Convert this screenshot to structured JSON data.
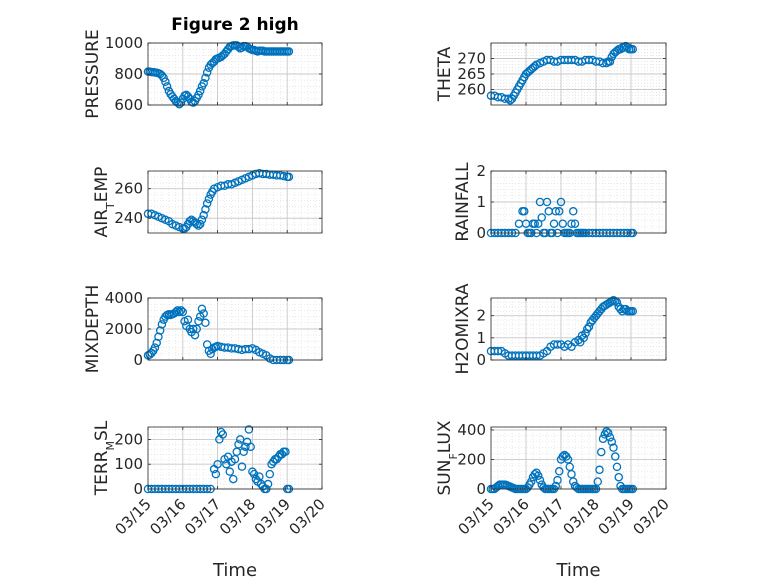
{
  "title": "Figure 2 high",
  "colors": {
    "marker": "#0072BD",
    "axis": "#262626",
    "grid": "#c8c8c8",
    "minor_grid": "#dcdcdc"
  },
  "x_axis": {
    "label": "Time",
    "range": [
      "03/15",
      "03/20"
    ],
    "ticks": [
      "03/15",
      "03/16",
      "03/17",
      "03/18",
      "03/19",
      "03/20"
    ]
  },
  "chart_data": [
    {
      "type": "scatter",
      "ylabel": "PRESSURE",
      "ylim": [
        600,
        1000
      ],
      "yticks": [
        "600",
        "800",
        "1000"
      ],
      "grid": true,
      "x": [
        0.0,
        0.05,
        0.1,
        0.15,
        0.2,
        0.25,
        0.3,
        0.35,
        0.4,
        0.45,
        0.5,
        0.55,
        0.6,
        0.65,
        0.7,
        0.75,
        0.8,
        0.85,
        0.9,
        0.95,
        1.0,
        1.05,
        1.1,
        1.15,
        1.2,
        1.25,
        1.3,
        1.35,
        1.4,
        1.45,
        1.5,
        1.55,
        1.6,
        1.65,
        1.7,
        1.75,
        1.8,
        1.85,
        1.9,
        1.95,
        2.0,
        2.05,
        2.1,
        2.15,
        2.2,
        2.25,
        2.3,
        2.35,
        2.4,
        2.45,
        2.5,
        2.55,
        2.6,
        2.65,
        2.7,
        2.75,
        2.8,
        2.85,
        2.9,
        2.95,
        3.0,
        3.05,
        3.1,
        3.15,
        3.2,
        3.25,
        3.3,
        3.35,
        3.4,
        3.45,
        3.5,
        3.55,
        3.6,
        3.65,
        3.7,
        3.75,
        3.8,
        3.85,
        3.9,
        3.95,
        4.0,
        4.05
      ],
      "y": [
        815,
        815,
        812,
        812,
        810,
        808,
        805,
        800,
        790,
        775,
        750,
        720,
        690,
        670,
        655,
        640,
        625,
        615,
        605,
        615,
        640,
        660,
        665,
        655,
        640,
        620,
        615,
        625,
        645,
        665,
        690,
        720,
        740,
        775,
        810,
        840,
        860,
        870,
        880,
        895,
        900,
        905,
        910,
        920,
        930,
        945,
        960,
        975,
        980,
        985,
        985,
        985,
        975,
        965,
        970,
        980,
        980,
        975,
        965,
        960,
        955,
        955,
        950,
        945,
        950,
        950,
        950,
        945,
        945,
        945,
        945,
        945,
        945,
        945,
        945,
        945,
        945,
        945,
        945,
        945,
        945,
        945
      ]
    },
    {
      "type": "scatter",
      "ylabel": "THETA",
      "ylim": [
        255,
        275
      ],
      "yticks": [
        "260",
        "265",
        "270"
      ],
      "grid": true,
      "x": [
        0.0,
        0.1,
        0.2,
        0.3,
        0.4,
        0.5,
        0.55,
        0.6,
        0.65,
        0.7,
        0.75,
        0.8,
        0.85,
        0.9,
        0.95,
        1.0,
        1.05,
        1.1,
        1.15,
        1.2,
        1.25,
        1.3,
        1.4,
        1.5,
        1.6,
        1.7,
        1.8,
        1.9,
        2.0,
        2.1,
        2.2,
        2.3,
        2.4,
        2.5,
        2.6,
        2.7,
        2.8,
        2.9,
        3.0,
        3.1,
        3.2,
        3.3,
        3.35,
        3.4,
        3.45,
        3.5,
        3.55,
        3.6,
        3.65,
        3.7,
        3.75,
        3.8,
        3.85,
        3.9,
        3.95,
        4.0,
        4.05
      ],
      "y": [
        258,
        258,
        257.5,
        257.5,
        257,
        257,
        256.5,
        257,
        258,
        259,
        260,
        261,
        262,
        263,
        264,
        265,
        265.5,
        266,
        266.5,
        267,
        267.5,
        268,
        268.5,
        269,
        269.5,
        269.5,
        269,
        269,
        269.5,
        269.5,
        269.5,
        269.5,
        269.5,
        269,
        269,
        269.5,
        269.5,
        269.5,
        269,
        269,
        268.5,
        268.5,
        269,
        269,
        270.5,
        271.5,
        272,
        272.5,
        273,
        273,
        273.5,
        273.5,
        274,
        273.5,
        273,
        273,
        273
      ]
    },
    {
      "type": "scatter",
      "ylabel": "AIR_TEMP",
      "ylim": [
        230,
        272
      ],
      "yticks": [
        "240",
        "260"
      ],
      "grid": true,
      "x": [
        0.0,
        0.1,
        0.2,
        0.3,
        0.4,
        0.5,
        0.6,
        0.7,
        0.8,
        0.9,
        1.0,
        1.05,
        1.1,
        1.15,
        1.2,
        1.25,
        1.3,
        1.35,
        1.4,
        1.45,
        1.5,
        1.55,
        1.6,
        1.65,
        1.7,
        1.75,
        1.8,
        1.85,
        1.9,
        2.0,
        2.1,
        2.2,
        2.3,
        2.4,
        2.5,
        2.6,
        2.7,
        2.8,
        2.9,
        3.0,
        3.1,
        3.2,
        3.3,
        3.4,
        3.5,
        3.6,
        3.7,
        3.8,
        3.9,
        4.0,
        4.05
      ],
      "y": [
        243,
        243,
        242,
        241,
        240,
        239,
        238,
        236,
        235,
        234,
        233,
        233,
        234,
        236,
        238,
        239,
        238,
        237,
        236,
        235,
        236,
        239,
        242,
        246,
        250,
        253,
        256,
        258,
        260,
        261,
        262,
        262,
        263,
        263,
        264,
        265,
        266,
        267,
        268,
        269,
        270,
        270.5,
        270,
        270,
        269.5,
        269.5,
        269,
        269,
        268.5,
        268,
        268
      ]
    },
    {
      "type": "scatter",
      "ylabel": "RAINFALL",
      "ylim": [
        0,
        2
      ],
      "yticks": [
        "0",
        "1",
        "2"
      ],
      "grid": true,
      "x": [
        0.0,
        0.1,
        0.2,
        0.3,
        0.4,
        0.5,
        0.6,
        0.7,
        0.8,
        0.9,
        0.95,
        1.0,
        1.05,
        1.1,
        1.15,
        1.2,
        1.25,
        1.3,
        1.35,
        1.4,
        1.45,
        1.5,
        1.55,
        1.6,
        1.65,
        1.7,
        1.75,
        1.8,
        1.85,
        1.9,
        1.95,
        2.0,
        2.05,
        2.1,
        2.15,
        2.2,
        2.25,
        2.3,
        2.35,
        2.4,
        2.45,
        2.5,
        2.55,
        2.6,
        2.65,
        2.7,
        2.8,
        2.9,
        3.0,
        3.1,
        3.2,
        3.3,
        3.4,
        3.5,
        3.6,
        3.7,
        3.8,
        3.9,
        4.0,
        4.05
      ],
      "y": [
        0,
        0,
        0,
        0,
        0,
        0,
        0,
        0,
        0.3,
        0.7,
        0.7,
        0.3,
        0,
        0,
        0,
        0.3,
        0.3,
        0,
        0.3,
        1,
        0.5,
        0,
        0,
        1,
        0.7,
        0,
        0,
        0.3,
        0.7,
        0,
        0.7,
        1,
        0.3,
        0,
        0,
        0,
        0,
        0.3,
        0.7,
        0.3,
        0,
        0,
        0,
        0,
        0,
        0,
        0,
        0,
        0,
        0,
        0,
        0,
        0,
        0,
        0,
        0,
        0,
        0,
        0,
        0
      ]
    },
    {
      "type": "scatter",
      "ylabel": "MIXDEPTH",
      "ylim": [
        0,
        4000
      ],
      "yticks": [
        "0",
        "2000",
        "4000"
      ],
      "grid": true,
      "x": [
        0.0,
        0.05,
        0.1,
        0.15,
        0.2,
        0.25,
        0.3,
        0.35,
        0.4,
        0.45,
        0.5,
        0.55,
        0.6,
        0.65,
        0.7,
        0.75,
        0.8,
        0.85,
        0.9,
        0.95,
        1.0,
        1.05,
        1.1,
        1.15,
        1.2,
        1.25,
        1.3,
        1.35,
        1.4,
        1.45,
        1.5,
        1.55,
        1.6,
        1.65,
        1.7,
        1.75,
        1.8,
        1.85,
        1.9,
        1.95,
        2.0,
        2.1,
        2.2,
        2.3,
        2.4,
        2.5,
        2.6,
        2.7,
        2.8,
        2.9,
        3.0,
        3.1,
        3.2,
        3.3,
        3.4,
        3.5,
        3.6,
        3.7,
        3.8,
        3.9,
        4.0,
        4.05
      ],
      "y": [
        300,
        350,
        450,
        600,
        800,
        1100,
        1500,
        1900,
        2300,
        2600,
        2800,
        2900,
        2950,
        2900,
        2950,
        3000,
        3100,
        3200,
        3100,
        3200,
        3100,
        2500,
        2200,
        2600,
        2000,
        1800,
        2000,
        1600,
        2000,
        2500,
        2800,
        3300,
        3000,
        2400,
        1000,
        600,
        400,
        700,
        800,
        850,
        900,
        850,
        800,
        800,
        750,
        750,
        700,
        650,
        700,
        700,
        750,
        650,
        500,
        400,
        300,
        100,
        0,
        0,
        0,
        0,
        0,
        0
      ]
    },
    {
      "type": "scatter",
      "ylabel": "H2OMIXRA",
      "ylim": [
        0,
        2.8
      ],
      "yticks": [
        "0",
        "1",
        "2"
      ],
      "grid": true,
      "x": [
        0.0,
        0.1,
        0.2,
        0.3,
        0.4,
        0.5,
        0.6,
        0.7,
        0.8,
        0.9,
        1.0,
        1.1,
        1.2,
        1.3,
        1.4,
        1.5,
        1.6,
        1.7,
        1.8,
        1.9,
        2.0,
        2.1,
        2.2,
        2.3,
        2.4,
        2.5,
        2.55,
        2.6,
        2.65,
        2.7,
        2.75,
        2.8,
        2.85,
        2.9,
        2.95,
        3.0,
        3.05,
        3.1,
        3.15,
        3.2,
        3.25,
        3.3,
        3.35,
        3.4,
        3.45,
        3.5,
        3.55,
        3.6,
        3.65,
        3.7,
        3.75,
        3.8,
        3.85,
        3.9,
        3.95,
        4.0,
        4.05
      ],
      "y": [
        0.4,
        0.4,
        0.4,
        0.4,
        0.3,
        0.2,
        0.2,
        0.2,
        0.2,
        0.2,
        0.2,
        0.2,
        0.2,
        0.2,
        0.2,
        0.3,
        0.4,
        0.6,
        0.7,
        0.7,
        0.7,
        0.6,
        0.7,
        0.6,
        0.8,
        0.9,
        0.8,
        1.1,
        1.0,
        1.2,
        1.4,
        1.5,
        1.7,
        1.8,
        1.9,
        2.0,
        2.1,
        2.2,
        2.3,
        2.4,
        2.45,
        2.5,
        2.55,
        2.6,
        2.65,
        2.7,
        2.65,
        2.6,
        2.4,
        2.3,
        2.2,
        2.3,
        2.3,
        2.2,
        2.2,
        2.2,
        2.2
      ]
    },
    {
      "type": "scatter",
      "ylabel": "TERR_MSL",
      "ylim": [
        0,
        250
      ],
      "yticks": [
        "0",
        "100",
        "200"
      ],
      "grid": true,
      "x": [
        0.0,
        0.1,
        0.2,
        0.3,
        0.4,
        0.5,
        0.6,
        0.7,
        0.8,
        0.9,
        1.0,
        1.1,
        1.2,
        1.3,
        1.4,
        1.5,
        1.6,
        1.7,
        1.8,
        1.9,
        1.95,
        2.0,
        2.05,
        2.1,
        2.15,
        2.2,
        2.25,
        2.3,
        2.35,
        2.4,
        2.45,
        2.5,
        2.55,
        2.6,
        2.65,
        2.7,
        2.75,
        2.8,
        2.85,
        2.9,
        2.95,
        3.0,
        3.05,
        3.1,
        3.15,
        3.2,
        3.25,
        3.3,
        3.35,
        3.4,
        3.45,
        3.5,
        3.55,
        3.6,
        3.65,
        3.7,
        3.75,
        3.8,
        3.85,
        3.9,
        3.95,
        4.0,
        4.05
      ],
      "y": [
        0,
        0,
        0,
        0,
        0,
        0,
        0,
        0,
        0,
        0,
        0,
        0,
        0,
        0,
        0,
        0,
        0,
        0,
        0,
        80,
        60,
        100,
        200,
        230,
        220,
        120,
        100,
        130,
        70,
        110,
        40,
        120,
        150,
        180,
        200,
        90,
        150,
        170,
        190,
        240,
        170,
        70,
        60,
        40,
        30,
        50,
        20,
        10,
        0,
        0,
        20,
        60,
        100,
        110,
        120,
        120,
        130,
        140,
        140,
        150,
        150,
        0,
        0
      ]
    },
    {
      "type": "scatter",
      "ylabel": "SUN_FLUX",
      "ylim": [
        0,
        420
      ],
      "yticks": [
        "0",
        "200",
        "400"
      ],
      "grid": true,
      "x": [
        0.0,
        0.05,
        0.1,
        0.15,
        0.2,
        0.25,
        0.3,
        0.35,
        0.4,
        0.45,
        0.5,
        0.55,
        0.6,
        0.65,
        0.7,
        0.75,
        0.8,
        0.85,
        0.9,
        0.95,
        1.0,
        1.05,
        1.1,
        1.15,
        1.2,
        1.25,
        1.3,
        1.35,
        1.4,
        1.45,
        1.5,
        1.55,
        1.6,
        1.65,
        1.7,
        1.75,
        1.8,
        1.85,
        1.9,
        1.95,
        2.0,
        2.05,
        2.1,
        2.15,
        2.2,
        2.25,
        2.3,
        2.35,
        2.4,
        2.45,
        2.5,
        2.55,
        2.6,
        2.65,
        2.7,
        2.75,
        2.8,
        2.85,
        2.9,
        2.95,
        3.0,
        3.05,
        3.1,
        3.15,
        3.2,
        3.25,
        3.3,
        3.35,
        3.4,
        3.45,
        3.5,
        3.55,
        3.6,
        3.65,
        3.7,
        3.75,
        3.8,
        3.85,
        3.9,
        3.95,
        4.0,
        4.05
      ],
      "y": [
        0,
        0,
        0,
        10,
        20,
        30,
        30,
        30,
        30,
        25,
        20,
        15,
        10,
        5,
        0,
        0,
        0,
        0,
        0,
        0,
        0,
        10,
        30,
        50,
        80,
        100,
        110,
        90,
        60,
        30,
        10,
        0,
        0,
        0,
        0,
        0,
        0,
        20,
        60,
        120,
        200,
        220,
        230,
        220,
        200,
        150,
        100,
        50,
        20,
        10,
        0,
        0,
        0,
        0,
        0,
        0,
        0,
        0,
        0,
        0,
        0,
        50,
        130,
        250,
        340,
        370,
        390,
        380,
        350,
        320,
        280,
        220,
        150,
        80,
        20,
        0,
        0,
        0,
        0,
        0,
        0,
        0
      ]
    }
  ]
}
